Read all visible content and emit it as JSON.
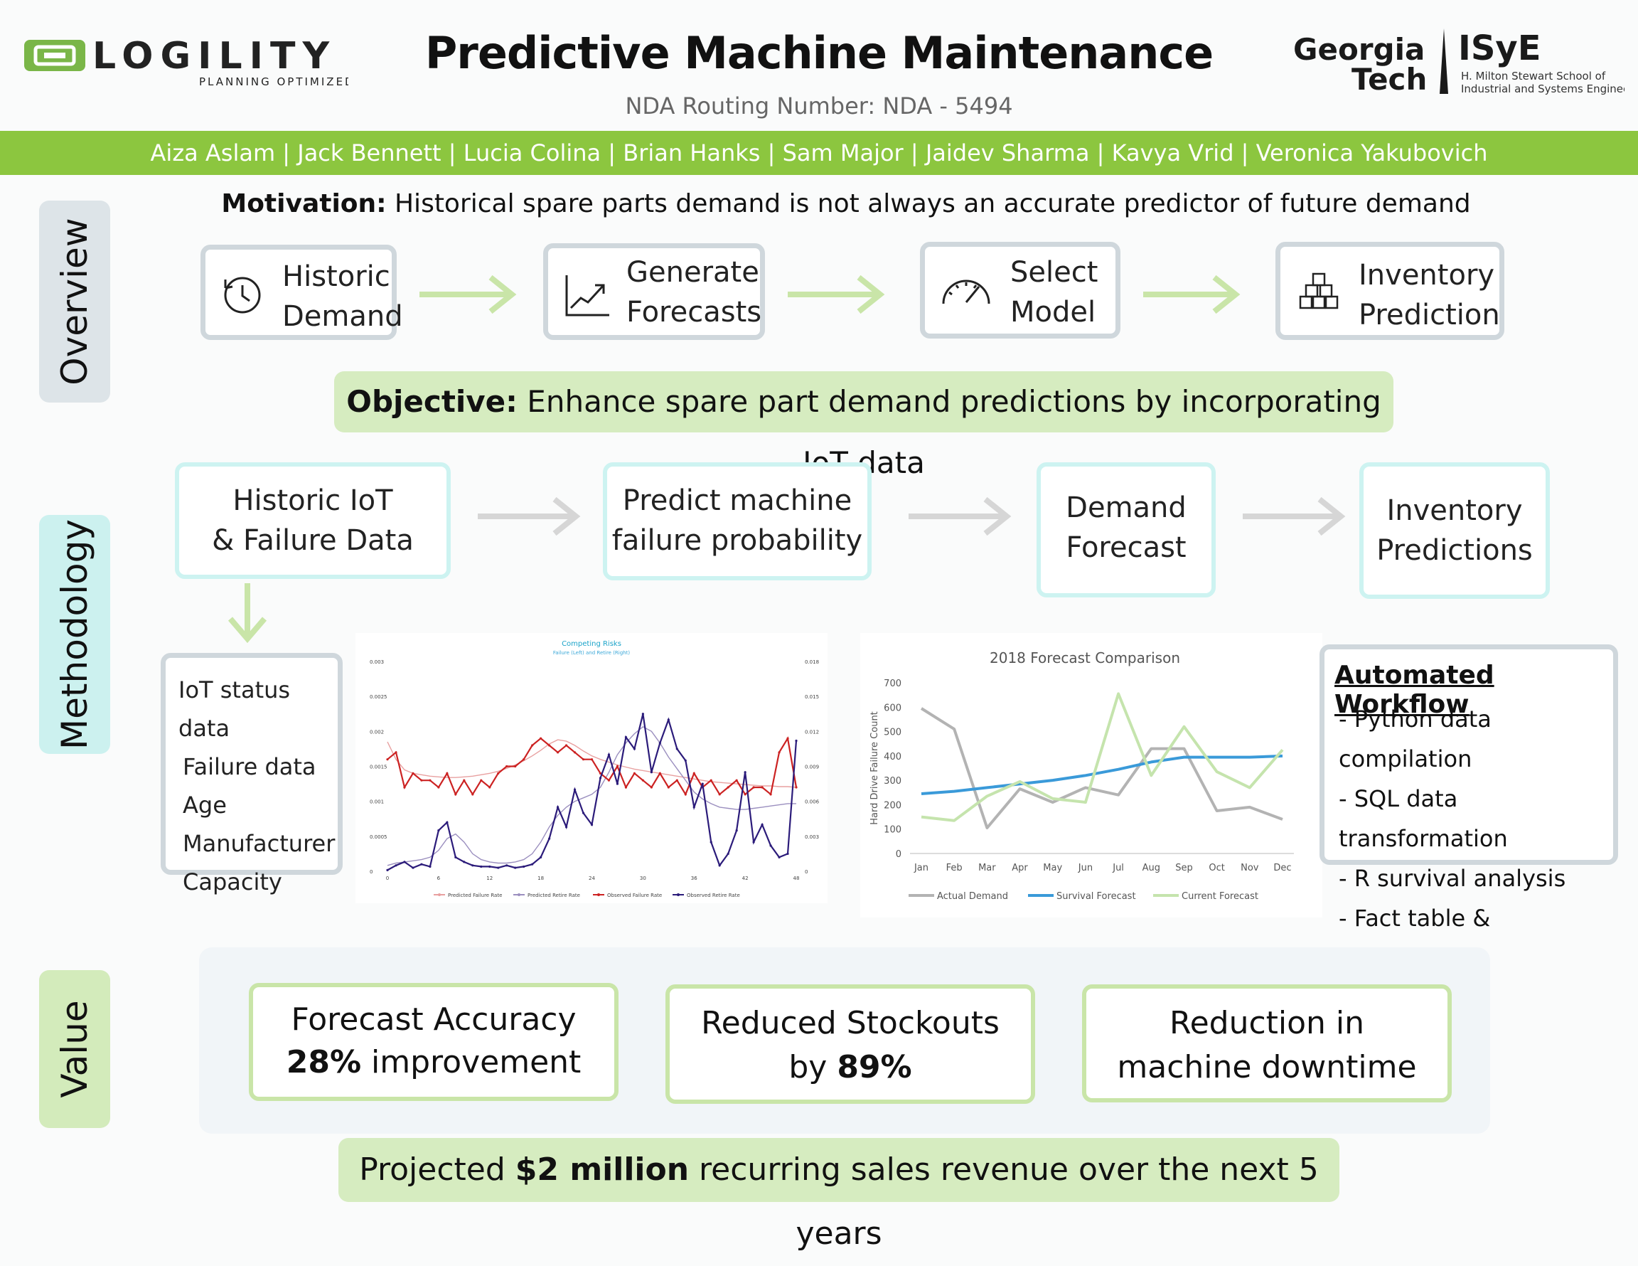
{
  "header": {
    "title": "Predictive Machine Maintenance",
    "nda": "NDA Routing Number:  NDA - 5494",
    "logo_left_name": "LOGILITY",
    "logo_left_tagline": "PLANNING  OPTIMIZED",
    "logo_right_line1": "Georgia",
    "logo_right_line2": "Tech",
    "logo_right_isye": "ISyE",
    "logo_right_sub1": "H. Milton Stewart School of",
    "logo_right_sub2": "Industrial and Systems Engineering"
  },
  "authors": "Aiza Aslam | Jack Bennett | Lucia Colina | Brian Hanks | Sam Major | Jaidev Sharma | Kavya Vrid | Veronica Yakubovich",
  "sections": {
    "overview": "Overview",
    "methodology": "Methodology",
    "value": "Value"
  },
  "overview": {
    "motivation_label": "Motivation:",
    "motivation_text": " Historical spare parts demand is not always an accurate predictor of future demand",
    "steps": [
      {
        "l1": "Historic",
        "l2": "Demand",
        "icon": "clock-icon"
      },
      {
        "l1": "Generate",
        "l2": "Forecasts",
        "icon": "trend-chart-icon"
      },
      {
        "l1": "Select",
        "l2": "Model",
        "icon": "gauge-icon"
      },
      {
        "l1": "Inventory",
        "l2": "Prediction",
        "icon": "boxes-icon"
      }
    ],
    "objective_label": "Objective:",
    "objective_text": "  Enhance spare part demand predictions by incorporating IoT data"
  },
  "methodology": {
    "steps": [
      {
        "l1": "Historic IoT",
        "l2": "& Failure Data"
      },
      {
        "l1": "Predict machine",
        "l2": "failure probability"
      },
      {
        "l1": "Demand",
        "l2": "Forecast"
      },
      {
        "l1": "Inventory",
        "l2": "Predictions"
      }
    ],
    "data_list": [
      "IoT status data",
      "Failure data",
      "Age",
      "Manufacturer",
      "Capacity"
    ],
    "workflow_title": "Automated Workflow",
    "workflow_items": [
      "-  Python data compilation",
      "-  SQL data transformation",
      "-  R survival analysis",
      "-  Fact table & Dashboard"
    ]
  },
  "value": {
    "cards": [
      {
        "l1": "Forecast Accuracy",
        "bold": "28%",
        "rest": " improvement"
      },
      {
        "l1": "Reduced Stockouts",
        "pre": "by ",
        "bold": "89%"
      },
      {
        "l1": "Reduction in",
        "l2": "machine downtime"
      }
    ],
    "projection_pre": "Projected ",
    "projection_bold": "$2 million",
    "projection_post": " recurring sales revenue over the next 5 years"
  },
  "chart_data": [
    {
      "type": "line",
      "title": "Competing Risks",
      "subtitle": "Failure (Left) and Retire (Right)",
      "x": [
        0,
        1,
        2,
        3,
        4,
        5,
        6,
        7,
        8,
        9,
        10,
        11,
        12,
        13,
        14,
        15,
        16,
        17,
        18,
        19,
        20,
        21,
        22,
        23,
        24,
        25,
        26,
        27,
        28,
        29,
        30,
        31,
        32,
        33,
        34,
        35,
        36,
        37,
        38,
        39,
        40,
        41,
        42,
        43,
        44,
        45,
        46,
        47,
        48
      ],
      "xticks": [
        "0",
        "6",
        "12",
        "18",
        "24",
        "30",
        "36",
        "42",
        "48"
      ],
      "yticks_left": [
        "0",
        "0.0005",
        "0.001",
        "0.0015",
        "0.002",
        "0.0025",
        "0.003"
      ],
      "yticks_right": [
        "0",
        "0.003",
        "0.006",
        "0.009",
        "0.012",
        "0.015",
        "0.018"
      ],
      "ylim_left": [
        0,
        0.003
      ],
      "ylim_right": [
        0,
        0.018
      ],
      "legend_position": "bottom",
      "series": [
        {
          "name": "Predicted Failure Rate",
          "axis": "left",
          "color": "#e8a0a0",
          "values": [
            0.00185,
            0.0016,
            0.00145,
            0.0014,
            0.00138,
            0.00136,
            0.00135,
            0.00134,
            0.00134,
            0.00135,
            0.00136,
            0.00138,
            0.0014,
            0.00143,
            0.00147,
            0.00152,
            0.00158,
            0.00165,
            0.00173,
            0.00182,
            0.00188,
            0.00186,
            0.0018,
            0.00172,
            0.00165,
            0.0016,
            0.00156,
            0.00152,
            0.00149,
            0.00146,
            0.00144,
            0.00142,
            0.0014,
            0.00138,
            0.00136,
            0.00134,
            0.00132,
            0.0013,
            0.00128,
            0.00127,
            0.00126,
            0.00125,
            0.00124,
            0.00123,
            0.00122,
            0.00122,
            0.00121,
            0.00121,
            0.0012
          ]
        },
        {
          "name": "Predicted Retire Rate",
          "axis": "right",
          "color": "#9b8fbf",
          "values": [
            0.0005,
            0.0007,
            0.0008,
            0.0009,
            0.001,
            0.0012,
            0.0018,
            0.0028,
            0.0032,
            0.0025,
            0.0015,
            0.001,
            0.0008,
            0.0007,
            0.0007,
            0.0008,
            0.001,
            0.0015,
            0.0025,
            0.0038,
            0.0048,
            0.0055,
            0.006,
            0.0063,
            0.0066,
            0.0072,
            0.0085,
            0.01,
            0.011,
            0.0118,
            0.0124,
            0.012,
            0.011,
            0.0098,
            0.0088,
            0.0078,
            0.0068,
            0.0062,
            0.0058,
            0.0055,
            0.0054,
            0.0053,
            0.0053,
            0.0054,
            0.0055,
            0.0056,
            0.0057,
            0.0058,
            0.0058
          ]
        },
        {
          "name": "Observed Failure Rate",
          "axis": "left",
          "color": "#cc2222",
          "values": [
            0.0016,
            0.0017,
            0.0012,
            0.0014,
            0.0013,
            0.0013,
            0.0012,
            0.0014,
            0.0011,
            0.0013,
            0.0011,
            0.0013,
            0.0012,
            0.0014,
            0.0015,
            0.0015,
            0.0016,
            0.0018,
            0.0019,
            0.0018,
            0.0017,
            0.0018,
            0.0017,
            0.0016,
            0.0016,
            0.0014,
            0.0013,
            0.0015,
            0.0012,
            0.0014,
            0.0013,
            0.0012,
            0.0014,
            0.0012,
            0.0013,
            0.0011,
            0.0014,
            0.0012,
            0.0013,
            0.0011,
            0.0012,
            0.0013,
            0.0011,
            0.0012,
            0.0012,
            0.0011,
            0.0017,
            0.0019,
            0.0012
          ]
        },
        {
          "name": "Observed Retire Rate",
          "axis": "right",
          "color": "#2b1b7a",
          "values": [
            0.0001,
            0.0005,
            0.0008,
            0.0003,
            0.0006,
            0.0004,
            0.0035,
            0.0042,
            0.0012,
            0.0008,
            0.0005,
            0.0004,
            0.0004,
            0.0003,
            0.0005,
            0.0003,
            0.0004,
            0.0006,
            0.0012,
            0.0028,
            0.0055,
            0.0038,
            0.007,
            0.005,
            0.004,
            0.008,
            0.01,
            0.0075,
            0.0115,
            0.0105,
            0.0135,
            0.0085,
            0.011,
            0.013,
            0.0105,
            0.0095,
            0.0055,
            0.0075,
            0.0025,
            0.0005,
            0.0015,
            0.0035,
            0.0085,
            0.0025,
            0.004,
            0.0022,
            0.0012,
            0.0015,
            0.0112
          ]
        }
      ]
    },
    {
      "type": "line",
      "title": "2018 Forecast Comparison",
      "ylabel": "Hard Drive Failure Count",
      "categories": [
        "Jan",
        "Feb",
        "Mar",
        "Apr",
        "May",
        "Jun",
        "Jul",
        "Aug",
        "Sep",
        "Oct",
        "Nov",
        "Dec"
      ],
      "yticks": [
        "0",
        "100",
        "200",
        "300",
        "400",
        "500",
        "600",
        "700"
      ],
      "ylim": [
        0,
        700
      ],
      "legend_position": "bottom",
      "series": [
        {
          "name": "Actual Demand",
          "color": "#b3b3b3",
          "values": [
            595,
            510,
            105,
            265,
            210,
            270,
            240,
            430,
            430,
            175,
            190,
            140
          ]
        },
        {
          "name": "Survival Forecast",
          "color": "#3a9ad9",
          "values": [
            245,
            255,
            270,
            285,
            300,
            320,
            345,
            375,
            395,
            395,
            395,
            400
          ]
        },
        {
          "name": "Current Forecast",
          "color": "#c5e4ad",
          "values": [
            150,
            135,
            235,
            295,
            225,
            210,
            655,
            320,
            520,
            335,
            270,
            425
          ]
        }
      ]
    }
  ]
}
